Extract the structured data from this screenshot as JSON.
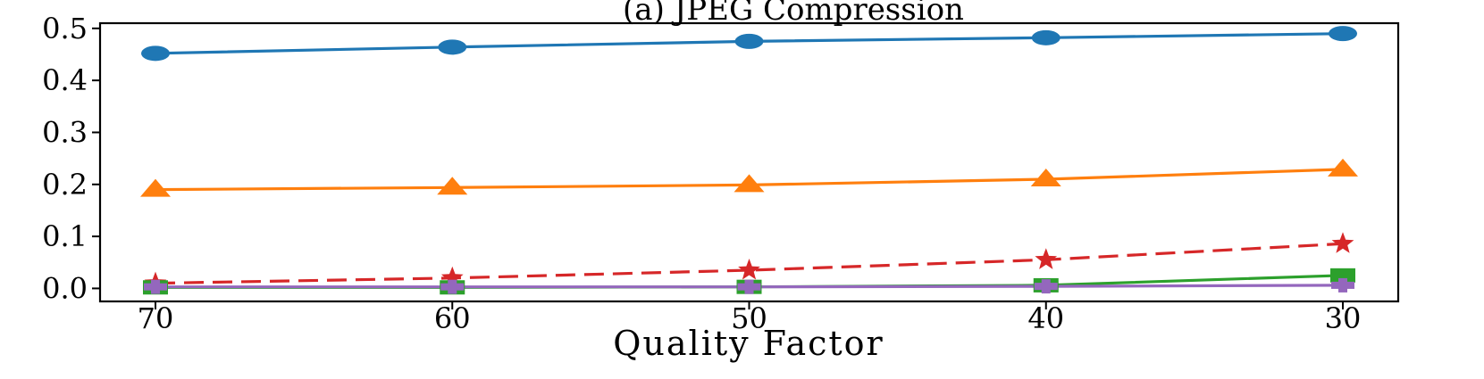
{
  "chart_data": {
    "type": "line",
    "title": "(a)  JPEG Compression",
    "xlabel": "Quality Factor",
    "ylabel": "",
    "x": [
      70,
      60,
      50,
      40,
      30
    ],
    "x_ticks": [
      "70",
      "60",
      "50",
      "40",
      "30"
    ],
    "y_ticks": [
      "0.0",
      "0.1",
      "0.2",
      "0.3",
      "0.4",
      "0.5"
    ],
    "ylim": [
      -0.025,
      0.51
    ],
    "grid": false,
    "series": [
      {
        "color": "#1f77b4",
        "marker": "circle",
        "dash": "solid",
        "values": [
          0.452,
          0.464,
          0.475,
          0.482,
          0.49
        ]
      },
      {
        "color": "#ff7f0e",
        "marker": "triangle",
        "dash": "solid",
        "values": [
          0.19,
          0.194,
          0.199,
          0.21,
          0.229
        ]
      },
      {
        "color": "#d62728",
        "marker": "star",
        "dash": "dashed",
        "values": [
          0.01,
          0.02,
          0.035,
          0.055,
          0.086
        ]
      },
      {
        "color": "#2ca02c",
        "marker": "square",
        "dash": "solid",
        "values": [
          0.002,
          0.002,
          0.003,
          0.006,
          0.025
        ]
      },
      {
        "color": "#9467bd",
        "marker": "plus",
        "dash": "solid",
        "values": [
          0.003,
          0.003,
          0.003,
          0.004,
          0.006
        ]
      }
    ]
  }
}
